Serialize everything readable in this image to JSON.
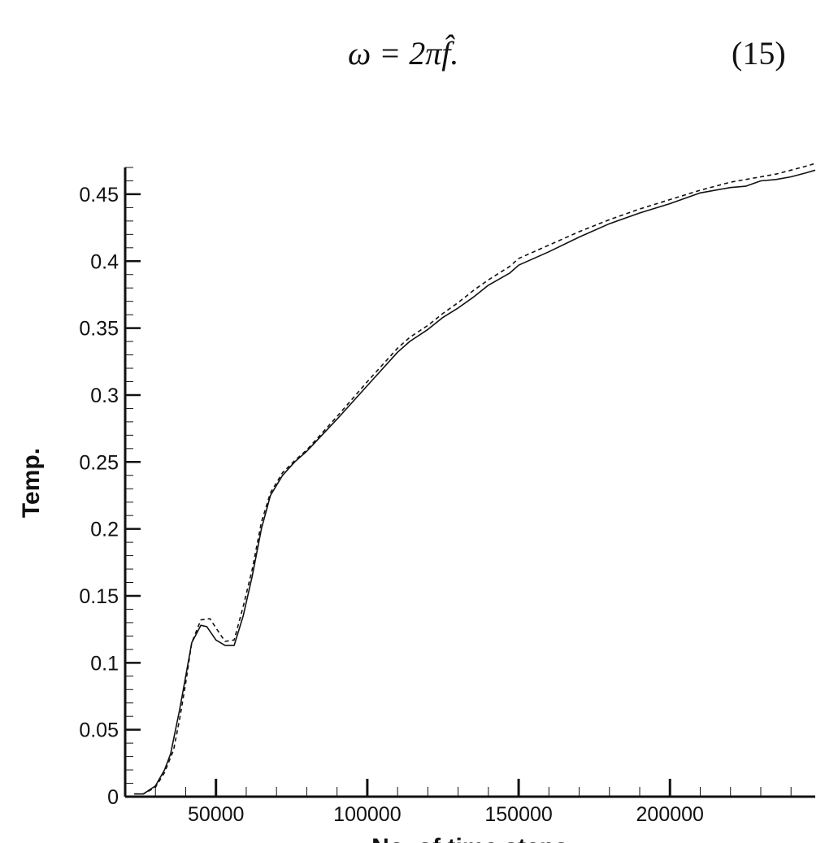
{
  "equation": {
    "text": "ω = 2πf̂.",
    "number": "(15)"
  },
  "chart_data": {
    "type": "line",
    "xlabel": "No. of time steps",
    "ylabel": "Temp.",
    "xlim": [
      20000,
      248000
    ],
    "ylim": [
      0,
      0.47
    ],
    "x_ticks": [
      50000,
      100000,
      150000,
      200000
    ],
    "x_tick_labels": [
      "50000",
      "100000",
      "150000",
      "200000"
    ],
    "y_ticks": [
      0,
      0.05,
      0.1,
      0.15,
      0.2,
      0.25,
      0.3,
      0.35,
      0.4,
      0.45
    ],
    "y_tick_labels": [
      "0",
      "0.05",
      "0.1",
      "0.15",
      "0.2",
      "0.25",
      "0.3",
      "0.35",
      "0.4",
      "0.45"
    ],
    "grid": false,
    "series": [
      {
        "style": "solid",
        "color": "#111111",
        "x": [
          23000,
          26000,
          30000,
          33000,
          35000,
          38000,
          40000,
          42000,
          45000,
          47000,
          50000,
          53000,
          56000,
          59000,
          62000,
          65000,
          68000,
          72000,
          76000,
          80000,
          90000,
          100000,
          110000,
          114000,
          120000,
          125000,
          130000,
          135000,
          140000,
          147000,
          150000,
          160000,
          170000,
          180000,
          190000,
          200000,
          210000,
          220000,
          225000,
          230000,
          235000,
          240000,
          245000,
          248000
        ],
        "y": [
          0.002,
          0.002,
          0.008,
          0.02,
          0.032,
          0.065,
          0.09,
          0.115,
          0.128,
          0.127,
          0.117,
          0.113,
          0.113,
          0.135,
          0.165,
          0.2,
          0.225,
          0.24,
          0.25,
          0.258,
          0.282,
          0.307,
          0.332,
          0.34,
          0.349,
          0.358,
          0.365,
          0.373,
          0.382,
          0.391,
          0.397,
          0.407,
          0.418,
          0.428,
          0.436,
          0.443,
          0.451,
          0.455,
          0.456,
          0.46,
          0.461,
          0.463,
          0.466,
          0.468
        ]
      },
      {
        "style": "dashed",
        "color": "#111111",
        "x": [
          23000,
          26000,
          30000,
          33000,
          36000,
          38000,
          40000,
          42000,
          45000,
          48000,
          50000,
          53000,
          56000,
          59000,
          62000,
          65000,
          68000,
          72000,
          76000,
          80000,
          90000,
          100000,
          110000,
          114000,
          120000,
          125000,
          130000,
          135000,
          140000,
          147000,
          150000,
          160000,
          170000,
          180000,
          190000,
          200000,
          210000,
          220000,
          225000,
          230000,
          235000,
          240000,
          245000,
          248000
        ],
        "y": [
          0.002,
          0.002,
          0.007,
          0.018,
          0.035,
          0.058,
          0.085,
          0.115,
          0.132,
          0.133,
          0.126,
          0.116,
          0.117,
          0.142,
          0.17,
          0.205,
          0.227,
          0.242,
          0.251,
          0.259,
          0.284,
          0.31,
          0.335,
          0.343,
          0.352,
          0.361,
          0.369,
          0.378,
          0.386,
          0.396,
          0.402,
          0.412,
          0.422,
          0.431,
          0.439,
          0.446,
          0.453,
          0.459,
          0.461,
          0.463,
          0.465,
          0.468,
          0.471,
          0.473
        ]
      }
    ]
  }
}
